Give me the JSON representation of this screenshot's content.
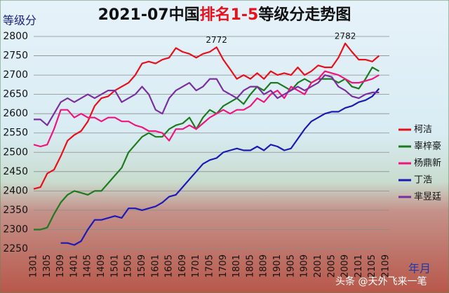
{
  "chart_data": {
    "type": "line",
    "title_parts": [
      "2021-07中国",
      "排名1-5",
      "等级分走势图"
    ],
    "title_colors": [
      "#111111",
      "#e8101a",
      "#111111"
    ],
    "y_label": "等级分",
    "x_label": "年月",
    "watermark": "头条 @天外飞来一笔",
    "categories": [
      "1301",
      null,
      "1305",
      null,
      "1309",
      null,
      "1401",
      null,
      "1405",
      null,
      "1409",
      null,
      "1501",
      null,
      "1505",
      null,
      "1509",
      null,
      "1601",
      null,
      "1605",
      null,
      "1609",
      null,
      "1701",
      null,
      "1705",
      null,
      "1709",
      null,
      "1801",
      null,
      "1805",
      null,
      "1809",
      null,
      "1901",
      null,
      "1905",
      null,
      "1909",
      null,
      "2001",
      null,
      "2005",
      null,
      "2009",
      null,
      "2101",
      null,
      "2105",
      null,
      "2109"
    ],
    "ylim": [
      2250,
      2800
    ],
    "yticks": [
      2250,
      2300,
      2350,
      2400,
      2450,
      2500,
      2550,
      2600,
      2650,
      2700,
      2750,
      2800
    ],
    "grid": true,
    "legend": "right",
    "annotations": [
      "2772",
      "2782"
    ],
    "series": [
      {
        "name": "柯洁",
        "color": "#e8101a",
        "values": [
          2405,
          2410,
          2445,
          2455,
          2490,
          2530,
          2545,
          2555,
          2580,
          2620,
          2640,
          2645,
          2660,
          2670,
          2680,
          2700,
          2730,
          2735,
          2730,
          2740,
          2745,
          2770,
          2760,
          2755,
          2745,
          2755,
          2760,
          2772,
          2740,
          2715,
          2690,
          2700,
          2690,
          2705,
          2690,
          2710,
          2700,
          2705,
          2700,
          2720,
          2700,
          2710,
          2725,
          2720,
          2720,
          2745,
          2782,
          2760,
          2740,
          2740,
          2735,
          2750,
          null
        ]
      },
      {
        "name": "辜梓豪",
        "color": "#1e7a1e",
        "values": [
          2300,
          2300,
          2305,
          2340,
          2370,
          2390,
          2400,
          2395,
          2390,
          2400,
          2400,
          2420,
          2440,
          2460,
          2500,
          2520,
          2540,
          2550,
          2540,
          2540,
          2560,
          2570,
          2575,
          2590,
          2560,
          2590,
          2610,
          2600,
          2620,
          2630,
          2640,
          2625,
          2650,
          2670,
          2660,
          2680,
          2680,
          2670,
          2660,
          2680,
          2690,
          2680,
          2690,
          2690,
          2690,
          2680,
          2690,
          2670,
          2665,
          2690,
          2720,
          2710,
          null
        ]
      },
      {
        "name": "杨鼎新",
        "color": "#f0157e",
        "values": [
          2520,
          2515,
          2520,
          2560,
          2610,
          2610,
          2590,
          2600,
          2590,
          2590,
          2580,
          2590,
          2590,
          2580,
          2580,
          2570,
          2565,
          2555,
          2555,
          2550,
          2530,
          2560,
          2560,
          2570,
          2560,
          2575,
          2590,
          2600,
          2610,
          2600,
          2610,
          2610,
          2620,
          2640,
          2630,
          2650,
          2660,
          2640,
          2670,
          2660,
          2650,
          2680,
          2690,
          2710,
          2705,
          2700,
          2690,
          2680,
          2680,
          2685,
          2690,
          2700,
          null
        ]
      },
      {
        "name": "丁浩",
        "color": "#1a1ab8",
        "values": [
          null,
          null,
          null,
          null,
          2265,
          2265,
          2260,
          2270,
          2300,
          2325,
          2325,
          2330,
          2335,
          2330,
          2355,
          2355,
          2350,
          2355,
          2360,
          2370,
          2385,
          2390,
          2410,
          2430,
          2450,
          2470,
          2480,
          2485,
          2500,
          2505,
          2510,
          2505,
          2505,
          2515,
          2505,
          2520,
          2515,
          2505,
          2510,
          2535,
          2560,
          2580,
          2590,
          2600,
          2605,
          2605,
          2615,
          2620,
          2630,
          2635,
          2645,
          2665,
          null
        ]
      },
      {
        "name": "芈昱廷",
        "color": "#7a2fa0",
        "values": [
          2585,
          2585,
          2570,
          2600,
          2630,
          2640,
          2630,
          2640,
          2650,
          2640,
          2650,
          2660,
          2660,
          2630,
          2640,
          2650,
          2670,
          2650,
          2610,
          2600,
          2640,
          2660,
          2670,
          2680,
          2660,
          2670,
          2690,
          2690,
          2660,
          2650,
          2640,
          2660,
          2670,
          2670,
          2650,
          2660,
          2640,
          2650,
          2660,
          2670,
          2660,
          2670,
          2680,
          2700,
          2695,
          2670,
          2660,
          2645,
          2640,
          2650,
          2655,
          2655,
          null
        ]
      }
    ]
  }
}
